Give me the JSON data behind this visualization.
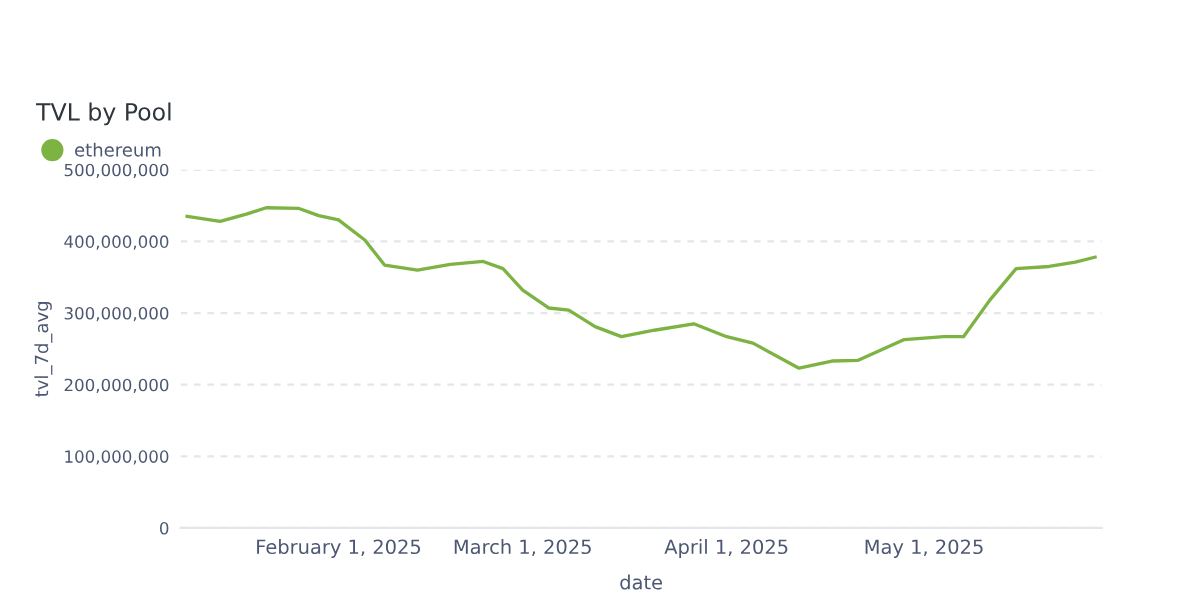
{
  "chart_data": {
    "type": "line",
    "title": "TVL by Pool",
    "xlabel": "date",
    "ylabel": "tvl_7d_avg",
    "x": [
      "2025-01-09",
      "2025-01-14",
      "2025-01-18",
      "2025-01-21",
      "2025-01-26",
      "2025-01-29",
      "2025-02-01",
      "2025-02-05",
      "2025-02-08",
      "2025-02-13",
      "2025-02-18",
      "2025-02-23",
      "2025-02-26",
      "2025-03-01",
      "2025-03-05",
      "2025-03-08",
      "2025-03-12",
      "2025-03-16",
      "2025-03-21",
      "2025-03-27",
      "2025-04-01",
      "2025-04-05",
      "2025-04-12",
      "2025-04-17",
      "2025-04-21",
      "2025-04-28",
      "2025-05-04",
      "2025-05-07",
      "2025-05-11",
      "2025-05-15",
      "2025-05-20",
      "2025-05-24",
      "2025-05-27"
    ],
    "series": [
      {
        "name": "ethereum",
        "color": "#7cb342",
        "values": [
          435000000,
          428000000,
          438000000,
          447000000,
          446000000,
          436000000,
          430000000,
          402000000,
          367000000,
          360000000,
          368000000,
          372000000,
          362000000,
          332000000,
          307000000,
          304000000,
          281000000,
          267000000,
          276000000,
          285000000,
          267000000,
          258000000,
          223000000,
          233000000,
          234000000,
          263000000,
          267000000,
          267000000,
          318000000,
          362000000,
          365000000,
          371000000,
          378000000
        ]
      }
    ],
    "xlim": [
      "2025-01-08",
      "2025-05-28"
    ],
    "xticks": [
      {
        "value": "2025-02-01",
        "label": "February 1, 2025"
      },
      {
        "value": "2025-03-01",
        "label": "March 1, 2025"
      },
      {
        "value": "2025-04-01",
        "label": "April 1, 2025"
      },
      {
        "value": "2025-05-01",
        "label": "May 1, 2025"
      }
    ],
    "ylim": [
      0,
      500000000
    ],
    "yticks": [
      {
        "value": 0,
        "label": "0"
      },
      {
        "value": 100000000,
        "label": "100,000,000"
      },
      {
        "value": 200000000,
        "label": "200,000,000"
      },
      {
        "value": 300000000,
        "label": "300,000,000"
      },
      {
        "value": 400000000,
        "label": "400,000,000"
      },
      {
        "value": 500000000,
        "label": "500,000,000"
      }
    ],
    "grid": "y",
    "legend": "top left",
    "marker": "none",
    "line_style": "solid"
  }
}
